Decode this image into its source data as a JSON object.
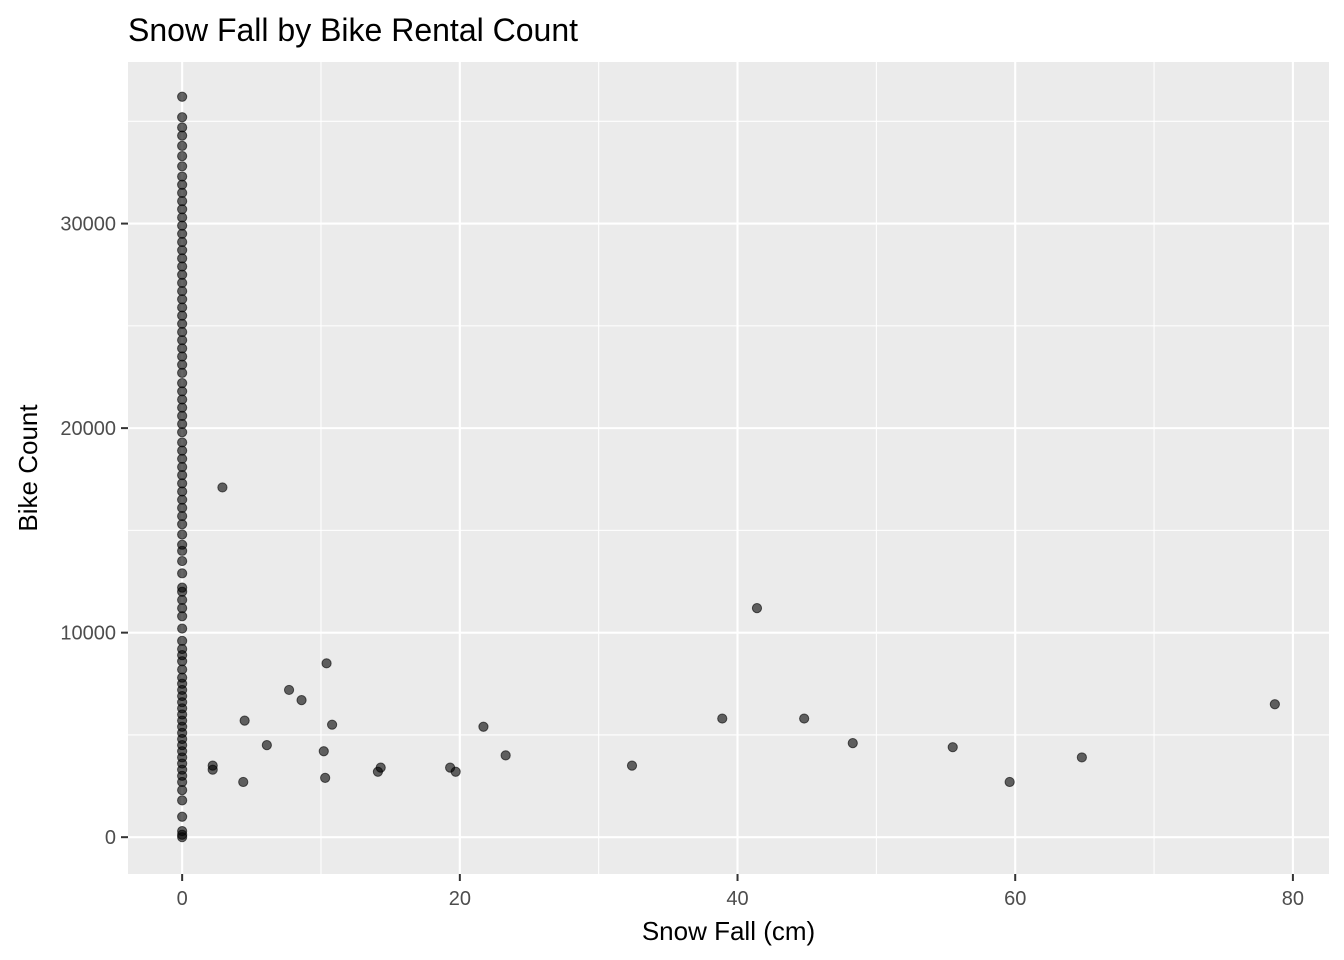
{
  "chart_data": {
    "type": "scatter",
    "title": "Snow Fall by Bike Rental Count",
    "xlabel": "Snow Fall (cm)",
    "ylabel": "Bike Count",
    "xlim": [
      -3.9,
      82.6
    ],
    "ylim": [
      -1800,
      37900
    ],
    "x_ticks": [
      0,
      20,
      40,
      60,
      80
    ],
    "x_tick_labels": [
      "0",
      "20",
      "40",
      "60",
      "80"
    ],
    "y_ticks": [
      0,
      10000,
      20000,
      30000
    ],
    "y_tick_labels": [
      "0",
      "10000",
      "20000",
      "30000"
    ],
    "x_minor": [
      10,
      30,
      50,
      70
    ],
    "y_minor": [
      5000,
      15000,
      25000,
      35000
    ],
    "grid": true,
    "legend": "none",
    "colors": {
      "panel": "#ebebeb",
      "grid": "#ffffff",
      "point": "#000000"
    },
    "points": [
      [
        0,
        0
      ],
      [
        0,
        120
      ],
      [
        0,
        300
      ],
      [
        0,
        1000
      ],
      [
        0,
        1800
      ],
      [
        0,
        2300
      ],
      [
        0,
        2700
      ],
      [
        0,
        3000
      ],
      [
        0,
        3300
      ],
      [
        0,
        3600
      ],
      [
        0,
        3900
      ],
      [
        0,
        4200
      ],
      [
        0,
        4500
      ],
      [
        0,
        4800
      ],
      [
        0,
        5100
      ],
      [
        0,
        5400
      ],
      [
        0,
        5700
      ],
      [
        0,
        6000
      ],
      [
        0,
        6300
      ],
      [
        0,
        6600
      ],
      [
        0,
        6900
      ],
      [
        0,
        7200
      ],
      [
        0,
        7500
      ],
      [
        0,
        7800
      ],
      [
        0,
        8200
      ],
      [
        0,
        8600
      ],
      [
        0,
        8900
      ],
      [
        0,
        9200
      ],
      [
        0,
        9600
      ],
      [
        0,
        10200
      ],
      [
        0,
        10800
      ],
      [
        0,
        11200
      ],
      [
        0,
        11600
      ],
      [
        0,
        12000
      ],
      [
        0,
        12200
      ],
      [
        0,
        12900
      ],
      [
        0,
        13500
      ],
      [
        0,
        14000
      ],
      [
        0,
        14300
      ],
      [
        0,
        14800
      ],
      [
        0,
        15300
      ],
      [
        0,
        15700
      ],
      [
        0,
        16100
      ],
      [
        0,
        16500
      ],
      [
        0,
        16900
      ],
      [
        0,
        17300
      ],
      [
        0,
        17700
      ],
      [
        0,
        18100
      ],
      [
        0,
        18500
      ],
      [
        0,
        18900
      ],
      [
        0,
        19300
      ],
      [
        0,
        19800
      ],
      [
        0,
        20200
      ],
      [
        0,
        20600
      ],
      [
        0,
        21000
      ],
      [
        0,
        21400
      ],
      [
        0,
        21800
      ],
      [
        0,
        22200
      ],
      [
        0,
        22700
      ],
      [
        0,
        23100
      ],
      [
        0,
        23500
      ],
      [
        0,
        23900
      ],
      [
        0,
        24300
      ],
      [
        0,
        24700
      ],
      [
        0,
        25100
      ],
      [
        0,
        25500
      ],
      [
        0,
        25900
      ],
      [
        0,
        26300
      ],
      [
        0,
        26700
      ],
      [
        0,
        27100
      ],
      [
        0,
        27500
      ],
      [
        0,
        27900
      ],
      [
        0,
        28300
      ],
      [
        0,
        28700
      ],
      [
        0,
        29100
      ],
      [
        0,
        29500
      ],
      [
        0,
        29900
      ],
      [
        0,
        30300
      ],
      [
        0,
        30700
      ],
      [
        0,
        31100
      ],
      [
        0,
        31500
      ],
      [
        0,
        31900
      ],
      [
        0,
        32300
      ],
      [
        0,
        32800
      ],
      [
        0,
        33300
      ],
      [
        0,
        33800
      ],
      [
        0,
        34300
      ],
      [
        0,
        34700
      ],
      [
        0,
        35200
      ],
      [
        0,
        36200
      ],
      [
        2.2,
        3300
      ],
      [
        2.2,
        3500
      ],
      [
        2.9,
        17100
      ],
      [
        4.4,
        2700
      ],
      [
        4.5,
        5700
      ],
      [
        6.1,
        4500
      ],
      [
        7.7,
        7200
      ],
      [
        8.6,
        6700
      ],
      [
        10.2,
        4200
      ],
      [
        10.3,
        2900
      ],
      [
        10.4,
        8500
      ],
      [
        10.8,
        5500
      ],
      [
        14.1,
        3200
      ],
      [
        14.3,
        3400
      ],
      [
        19.3,
        3400
      ],
      [
        19.7,
        3200
      ],
      [
        21.7,
        5400
      ],
      [
        23.3,
        4000
      ],
      [
        32.4,
        3500
      ],
      [
        38.9,
        5800
      ],
      [
        41.4,
        11200
      ],
      [
        44.8,
        5800
      ],
      [
        48.3,
        4600
      ],
      [
        55.5,
        4400
      ],
      [
        59.6,
        2700
      ],
      [
        64.8,
        3900
      ],
      [
        78.7,
        6500
      ]
    ]
  }
}
